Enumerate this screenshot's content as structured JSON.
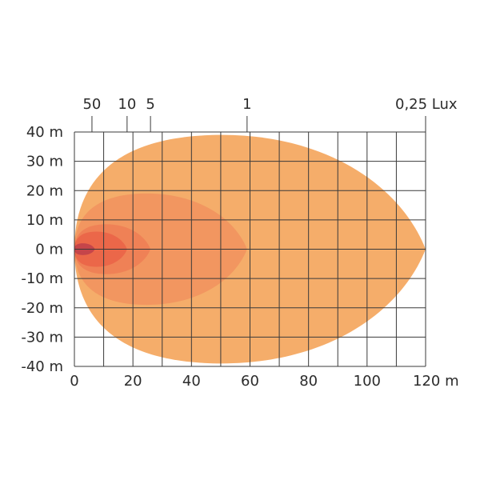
{
  "chart_data": {
    "type": "isolux-diagram",
    "x_range": [
      0,
      120
    ],
    "y_range": [
      -40,
      40
    ],
    "x_unit": "m",
    "y_unit": "m",
    "grid": true,
    "x_grid_step": 10,
    "y_grid_step": 10,
    "x_ticks": [
      {
        "value": 0,
        "label": "0"
      },
      {
        "value": 20,
        "label": "20"
      },
      {
        "value": 40,
        "label": "40"
      },
      {
        "value": 60,
        "label": "60"
      },
      {
        "value": 80,
        "label": "80"
      },
      {
        "value": 100,
        "label": "100"
      },
      {
        "value": 120,
        "label": "120 m"
      }
    ],
    "y_ticks": [
      {
        "value": 40,
        "label": "40 m"
      },
      {
        "value": 30,
        "label": "30 m"
      },
      {
        "value": 20,
        "label": "20 m"
      },
      {
        "value": 10,
        "label": "10 m"
      },
      {
        "value": 0,
        "label": "0 m"
      },
      {
        "value": -10,
        "label": "-10 m"
      },
      {
        "value": -20,
        "label": "-20 m"
      },
      {
        "value": -30,
        "label": "-30 m"
      },
      {
        "value": -40,
        "label": "-40 m"
      }
    ],
    "series": [
      {
        "name": "0,25 Lux",
        "lux": 0.25,
        "reach": 120,
        "half_width": 39,
        "color": "#f5ad6a"
      },
      {
        "name": "1",
        "lux": 1,
        "reach": 59,
        "half_width": 19,
        "color": "#f29660"
      },
      {
        "name": "5",
        "lux": 5,
        "reach": 26,
        "half_width": 8.5,
        "color": "#ef8156"
      },
      {
        "name": "10",
        "lux": 10,
        "reach": 18,
        "half_width": 6,
        "color": "#eb6749"
      },
      {
        "name": "50",
        "lux": 50,
        "reach": 7,
        "half_width": 2,
        "color": "#c5454a"
      }
    ],
    "top_labels": [
      {
        "value": 6,
        "label": "50"
      },
      {
        "value": 18,
        "label": "10"
      },
      {
        "value": 26,
        "label": "5"
      },
      {
        "value": 59,
        "label": "1"
      },
      {
        "value": 120,
        "label": "0,25 Lux"
      }
    ]
  }
}
